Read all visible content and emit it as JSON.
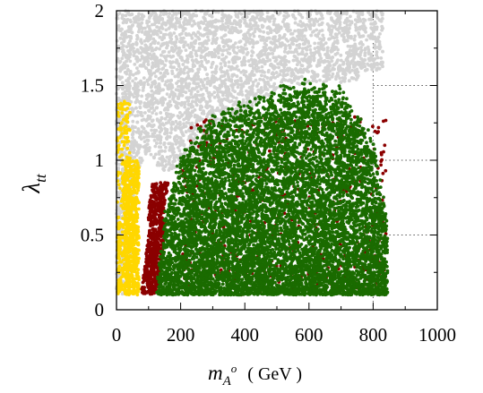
{
  "chart_data": {
    "type": "scatter",
    "title": "",
    "xlabel": {
      "main": "m",
      "sub": "A",
      "sup": "o",
      "unit": "( GeV )"
    },
    "ylabel": {
      "main": "λ",
      "sub": "tt"
    },
    "xlim": [
      0,
      1000
    ],
    "ylim": [
      0,
      2
    ],
    "x_ticks": [
      0,
      200,
      400,
      600,
      800,
      1000
    ],
    "x_tick_labels": [
      "0",
      "200",
      "400",
      "600",
      "800",
      "1000"
    ],
    "y_ticks": [
      0,
      0.5,
      1,
      1.5,
      2
    ],
    "y_tick_labels": [
      "0",
      "0.5",
      "1",
      "1.5",
      "2"
    ],
    "grid": "dotted reference lines at x=800 and y=0.5, 1, 1.5 (right side)",
    "legend": "none",
    "series": [
      {
        "color": "#d3d3d3",
        "region": {
          "x_range": [
            0,
            830
          ],
          "y_range": [
            0.1,
            2.0
          ],
          "boundary_lower_y_vs_x": [
            [
              0,
              0.1
            ],
            [
              40,
              0.1
            ],
            [
              60,
              1.0
            ],
            [
              100,
              1.1
            ],
            [
              150,
              1.0
            ],
            [
              200,
              1.05
            ],
            [
              300,
              1.2
            ],
            [
              400,
              1.4
            ],
            [
              500,
              1.55
            ],
            [
              600,
              1.6
            ],
            [
              700,
              1.6
            ],
            [
              830,
              1.65
            ]
          ],
          "approx_points": 4500
        }
      },
      {
        "color": "#ffd700",
        "region": {
          "x_range": [
            2,
            70
          ],
          "y_range": [
            0.1,
            1.4
          ],
          "approx_points": 900
        }
      },
      {
        "color": "#8b0000",
        "region": {
          "x_range": [
            50,
            840
          ],
          "y_range": [
            0.1,
            1.35
          ],
          "approx_points": 1200
        }
      },
      {
        "color": "#1a6b00",
        "region": {
          "x_range": [
            125,
            845
          ],
          "y_range": [
            0.1,
            1.55
          ],
          "boundary_upper_y_vs_x": [
            [
              125,
              0.1
            ],
            [
              150,
              0.6
            ],
            [
              180,
              0.85
            ],
            [
              200,
              1.0
            ],
            [
              250,
              1.15
            ],
            [
              300,
              1.25
            ],
            [
              400,
              1.35
            ],
            [
              500,
              1.45
            ],
            [
              600,
              1.5
            ],
            [
              700,
              1.45
            ],
            [
              800,
              1.1
            ],
            [
              845,
              0.6
            ]
          ],
          "approx_points": 9000
        }
      }
    ]
  }
}
